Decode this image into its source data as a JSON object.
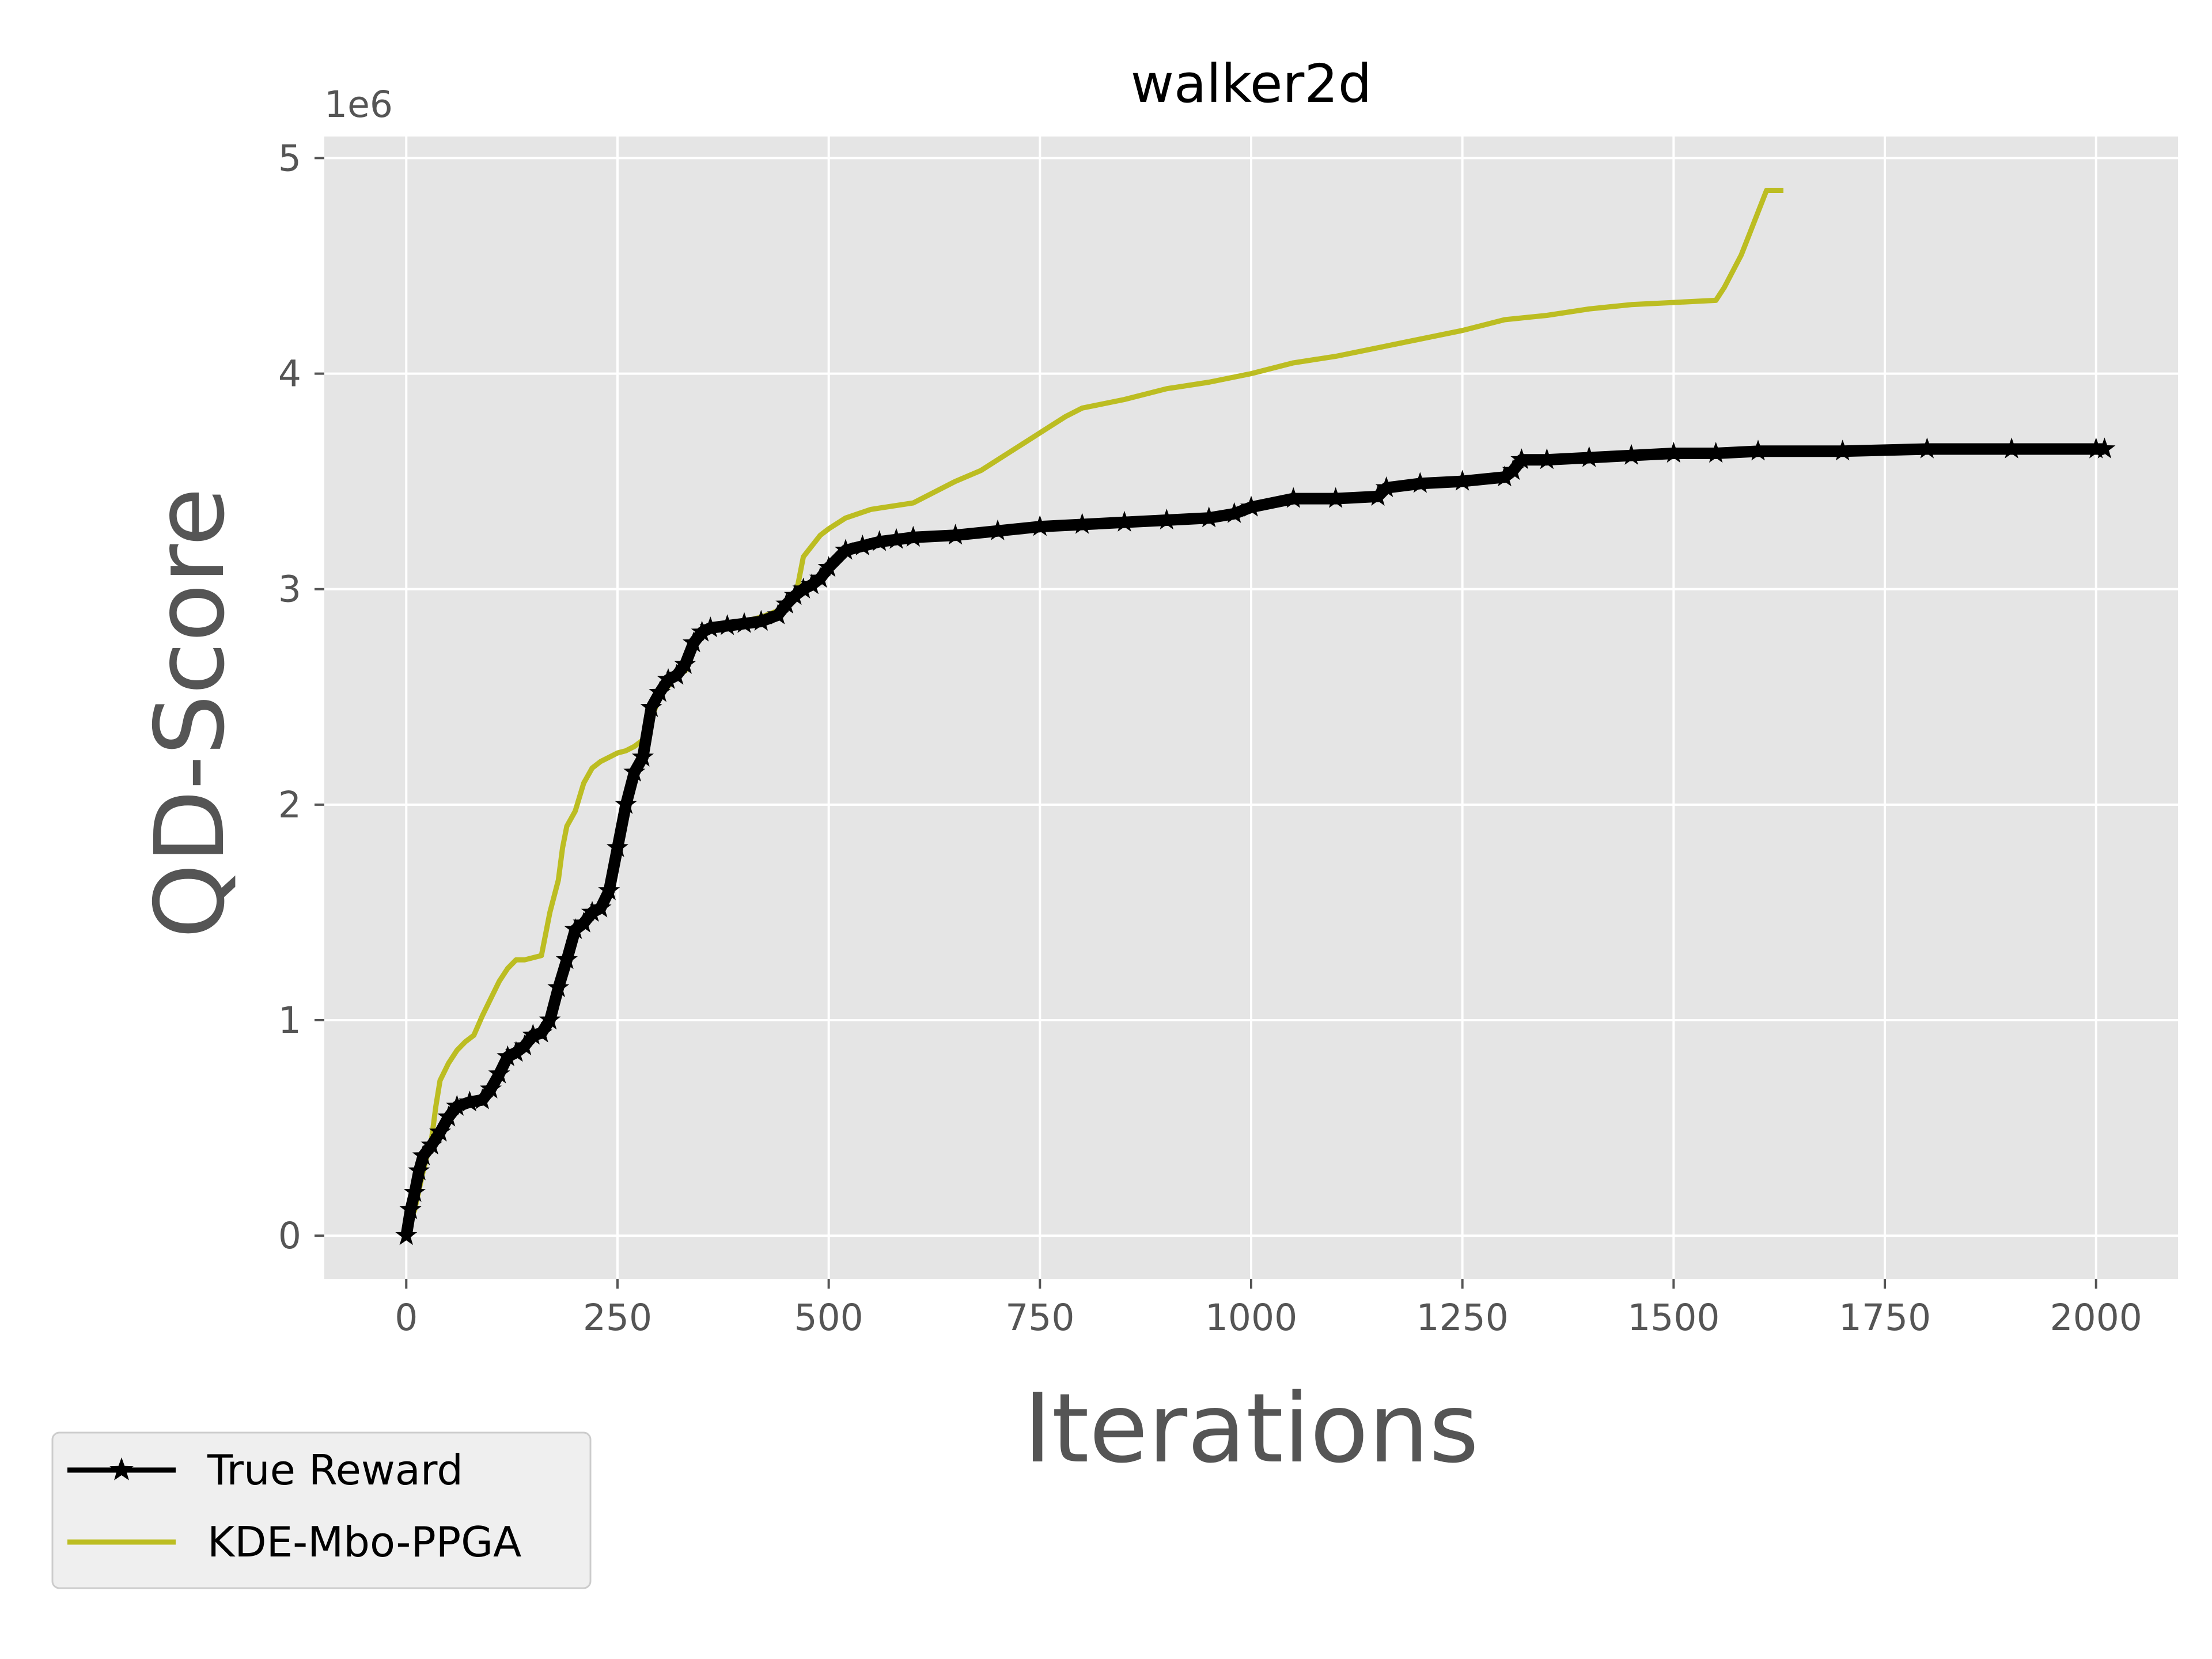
{
  "chart_data": {
    "type": "line",
    "title": "walker2d",
    "xlabel": "Iterations",
    "ylabel": "QD-Score",
    "y_offset_label": "1e6",
    "xlim": [
      -97,
      2097
    ],
    "ylim": [
      -0.2,
      5.1
    ],
    "x_ticks": [
      0,
      250,
      500,
      750,
      1000,
      1250,
      1500,
      1750,
      2000
    ],
    "x_tick_labels": [
      "0",
      "250",
      "500",
      "750",
      "1000",
      "1250",
      "1500",
      "1750",
      "2000"
    ],
    "y_ticks": [
      0,
      1,
      2,
      3,
      4,
      5
    ],
    "y_tick_labels": [
      "0",
      "1",
      "2",
      "3",
      "4",
      "5"
    ],
    "grid": true,
    "legend_placement": "outside-lower-left",
    "series": [
      {
        "name": "True Reward",
        "color": "#000000",
        "marker": "star",
        "x": [
          0,
          5,
          10,
          15,
          20,
          30,
          40,
          50,
          60,
          75,
          90,
          100,
          110,
          120,
          130,
          140,
          150,
          160,
          170,
          180,
          190,
          200,
          210,
          220,
          230,
          240,
          250,
          260,
          270,
          280,
          290,
          300,
          310,
          320,
          330,
          340,
          350,
          360,
          380,
          400,
          420,
          440,
          450,
          460,
          470,
          480,
          490,
          500,
          520,
          540,
          560,
          580,
          600,
          650,
          700,
          750,
          800,
          850,
          900,
          950,
          980,
          1000,
          1050,
          1100,
          1150,
          1160,
          1200,
          1250,
          1300,
          1310,
          1320,
          1350,
          1400,
          1450,
          1500,
          1550,
          1600,
          1700,
          1800,
          1900,
          2000,
          2010
        ],
        "y": [
          0.0,
          0.12,
          0.2,
          0.3,
          0.37,
          0.42,
          0.48,
          0.55,
          0.6,
          0.62,
          0.63,
          0.68,
          0.75,
          0.83,
          0.85,
          0.88,
          0.93,
          0.94,
          1.0,
          1.15,
          1.28,
          1.42,
          1.45,
          1.5,
          1.52,
          1.6,
          1.8,
          2.0,
          2.15,
          2.22,
          2.45,
          2.52,
          2.58,
          2.6,
          2.65,
          2.75,
          2.8,
          2.82,
          2.83,
          2.84,
          2.85,
          2.88,
          2.93,
          2.97,
          3.0,
          3.02,
          3.05,
          3.1,
          3.18,
          3.2,
          3.22,
          3.23,
          3.24,
          3.25,
          3.27,
          3.29,
          3.3,
          3.31,
          3.32,
          3.33,
          3.35,
          3.38,
          3.42,
          3.42,
          3.43,
          3.47,
          3.49,
          3.5,
          3.52,
          3.55,
          3.6,
          3.6,
          3.61,
          3.62,
          3.63,
          3.63,
          3.64,
          3.64,
          3.65,
          3.65,
          3.65,
          3.65
        ]
      },
      {
        "name": "KDE-Mbo-PPGA",
        "color": "#bcbd22",
        "marker": "none",
        "x": [
          0,
          10,
          20,
          30,
          35,
          40,
          50,
          60,
          70,
          80,
          90,
          100,
          110,
          120,
          130,
          140,
          160,
          170,
          180,
          185,
          190,
          200,
          210,
          220,
          230,
          240,
          250,
          260,
          270,
          280,
          290,
          300,
          310,
          320,
          330,
          340,
          350,
          360,
          380,
          400,
          420,
          440,
          460,
          470,
          480,
          490,
          500,
          520,
          550,
          600,
          650,
          680,
          700,
          720,
          740,
          760,
          780,
          800,
          850,
          900,
          950,
          1000,
          1050,
          1100,
          1150,
          1200,
          1250,
          1300,
          1350,
          1400,
          1450,
          1500,
          1550,
          1560,
          1580,
          1590,
          1600,
          1610,
          1630
        ],
        "y": [
          0.02,
          0.12,
          0.3,
          0.45,
          0.6,
          0.72,
          0.8,
          0.86,
          0.9,
          0.93,
          1.02,
          1.1,
          1.18,
          1.24,
          1.28,
          1.28,
          1.3,
          1.5,
          1.65,
          1.8,
          1.9,
          1.97,
          2.1,
          2.17,
          2.2,
          2.22,
          2.24,
          2.25,
          2.27,
          2.3,
          2.4,
          2.5,
          2.55,
          2.6,
          2.62,
          2.75,
          2.8,
          2.82,
          2.84,
          2.85,
          2.87,
          2.9,
          2.95,
          3.15,
          3.2,
          3.25,
          3.28,
          3.33,
          3.37,
          3.4,
          3.5,
          3.55,
          3.6,
          3.65,
          3.7,
          3.75,
          3.8,
          3.84,
          3.88,
          3.93,
          3.96,
          4.0,
          4.05,
          4.08,
          4.12,
          4.16,
          4.2,
          4.25,
          4.27,
          4.3,
          4.32,
          4.33,
          4.34,
          4.4,
          4.55,
          4.65,
          4.75,
          4.85,
          4.85
        ]
      }
    ]
  }
}
